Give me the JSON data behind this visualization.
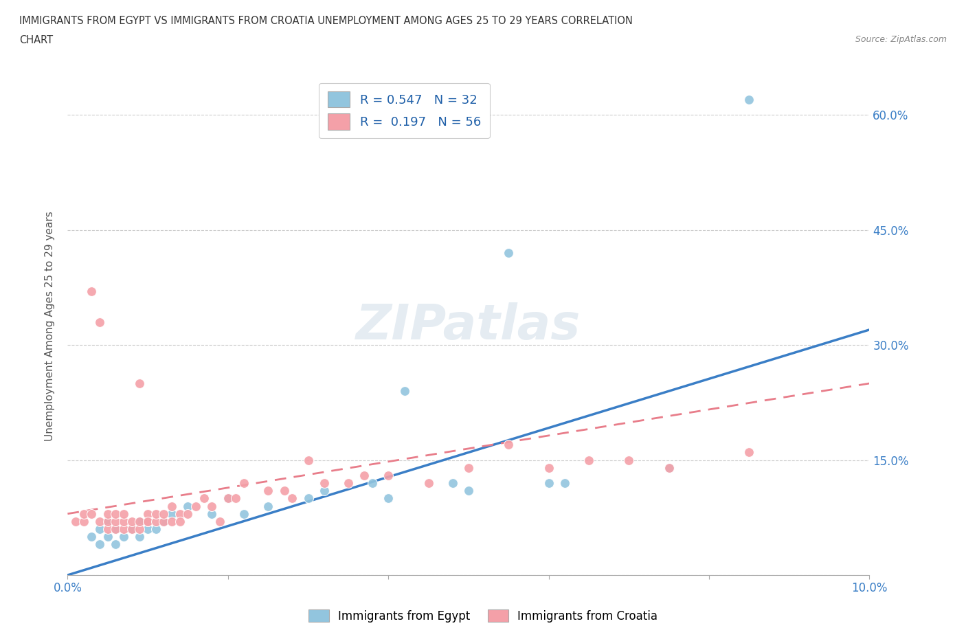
{
  "title_line1": "IMMIGRANTS FROM EGYPT VS IMMIGRANTS FROM CROATIA UNEMPLOYMENT AMONG AGES 25 TO 29 YEARS CORRELATION",
  "title_line2": "CHART",
  "source": "Source: ZipAtlas.com",
  "ylabel": "Unemployment Among Ages 25 to 29 years",
  "xlim": [
    0.0,
    0.1
  ],
  "ylim": [
    0.0,
    0.65
  ],
  "watermark": "ZIPatlas",
  "egypt_color": "#92C5DE",
  "croatia_color": "#F4A0A8",
  "egypt_line_color": "#3A7EC6",
  "croatia_line_color": "#E87D8A",
  "egypt_R": 0.547,
  "egypt_N": 32,
  "croatia_R": 0.197,
  "croatia_N": 56,
  "egypt_scatter_x": [
    0.003,
    0.004,
    0.004,
    0.005,
    0.005,
    0.006,
    0.006,
    0.007,
    0.008,
    0.009,
    0.009,
    0.01,
    0.011,
    0.012,
    0.013,
    0.015,
    0.018,
    0.02,
    0.022,
    0.025,
    0.03,
    0.032,
    0.038,
    0.04,
    0.042,
    0.048,
    0.05,
    0.055,
    0.06,
    0.062,
    0.075,
    0.085
  ],
  "egypt_scatter_y": [
    0.05,
    0.04,
    0.06,
    0.05,
    0.07,
    0.04,
    0.06,
    0.05,
    0.06,
    0.05,
    0.07,
    0.06,
    0.06,
    0.07,
    0.08,
    0.09,
    0.08,
    0.1,
    0.08,
    0.09,
    0.1,
    0.11,
    0.12,
    0.1,
    0.24,
    0.12,
    0.11,
    0.42,
    0.12,
    0.12,
    0.14,
    0.62
  ],
  "croatia_scatter_x": [
    0.001,
    0.002,
    0.002,
    0.003,
    0.003,
    0.004,
    0.004,
    0.005,
    0.005,
    0.005,
    0.006,
    0.006,
    0.006,
    0.007,
    0.007,
    0.007,
    0.008,
    0.008,
    0.009,
    0.009,
    0.009,
    0.01,
    0.01,
    0.01,
    0.011,
    0.011,
    0.012,
    0.012,
    0.013,
    0.013,
    0.014,
    0.014,
    0.015,
    0.016,
    0.017,
    0.018,
    0.019,
    0.02,
    0.021,
    0.022,
    0.025,
    0.027,
    0.028,
    0.03,
    0.032,
    0.035,
    0.037,
    0.04,
    0.045,
    0.05,
    0.055,
    0.06,
    0.065,
    0.07,
    0.075,
    0.085
  ],
  "croatia_scatter_y": [
    0.07,
    0.07,
    0.08,
    0.37,
    0.08,
    0.07,
    0.33,
    0.06,
    0.07,
    0.08,
    0.06,
    0.07,
    0.08,
    0.06,
    0.07,
    0.08,
    0.06,
    0.07,
    0.06,
    0.07,
    0.25,
    0.07,
    0.08,
    0.07,
    0.07,
    0.08,
    0.07,
    0.08,
    0.07,
    0.09,
    0.08,
    0.07,
    0.08,
    0.09,
    0.1,
    0.09,
    0.07,
    0.1,
    0.1,
    0.12,
    0.11,
    0.11,
    0.1,
    0.15,
    0.12,
    0.12,
    0.13,
    0.13,
    0.12,
    0.14,
    0.17,
    0.14,
    0.15,
    0.15,
    0.14,
    0.16
  ],
  "legend_label_egypt": "Immigrants from Egypt",
  "legend_label_croatia": "Immigrants from Croatia",
  "egypt_trendline_x": [
    0.0,
    0.1
  ],
  "egypt_trendline_y": [
    0.0,
    0.32
  ],
  "croatia_trendline_x": [
    0.0,
    0.1
  ],
  "croatia_trendline_y": [
    0.08,
    0.25
  ]
}
